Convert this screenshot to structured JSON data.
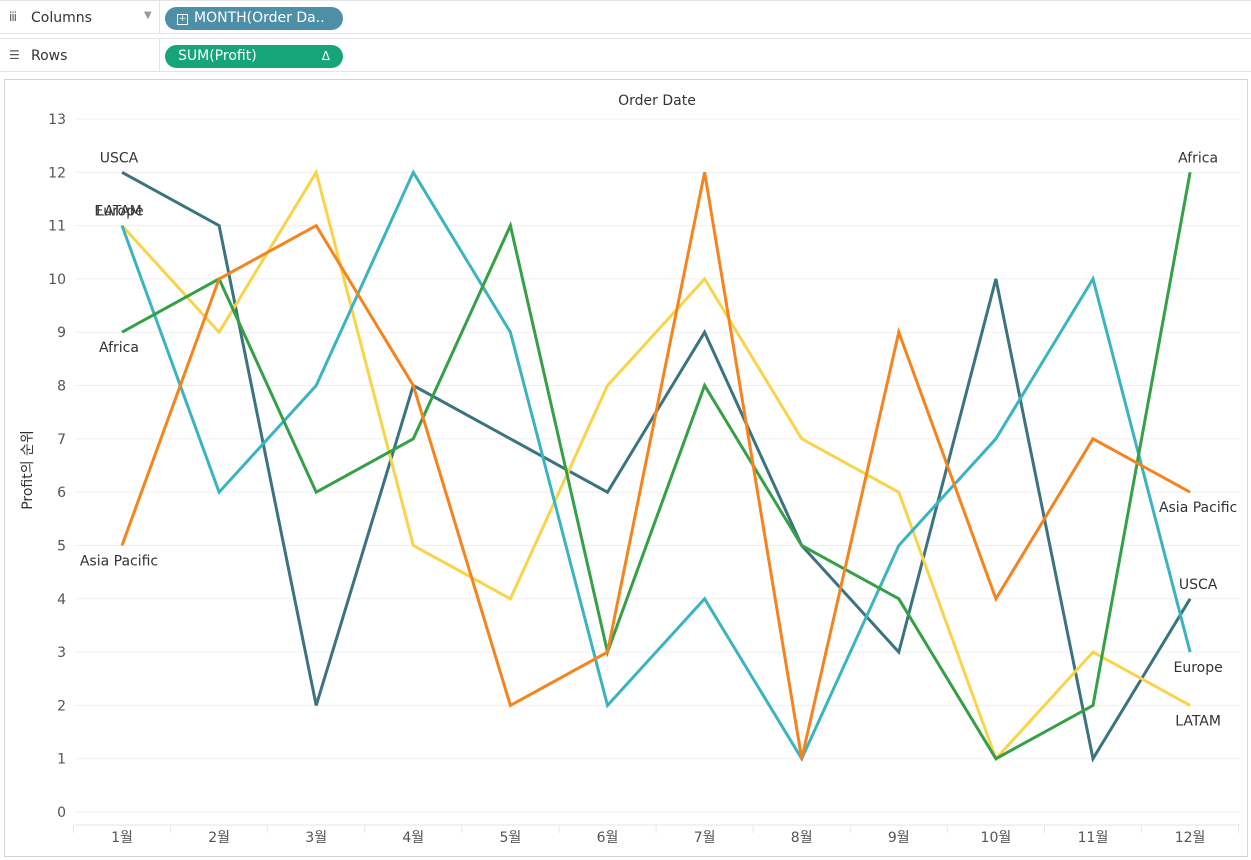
{
  "shelves": {
    "columns": {
      "label": "Columns",
      "icon": "iii",
      "pill": "MONTH(Order Da.."
    },
    "rows": {
      "label": "Rows",
      "icon": "☰",
      "pill": "SUM(Profit)",
      "pill_marker": "Δ"
    }
  },
  "chart_data": {
    "type": "line",
    "title": "Order Date",
    "xlabel": "",
    "ylabel": "Profit의 순위",
    "categories": [
      "1월",
      "2월",
      "3월",
      "4월",
      "5월",
      "6월",
      "7월",
      "8월",
      "9월",
      "10월",
      "11월",
      "12월"
    ],
    "ylim": [
      0,
      13
    ],
    "yticks": [
      0,
      1,
      2,
      3,
      4,
      5,
      6,
      7,
      8,
      9,
      10,
      11,
      12,
      13
    ],
    "grid": true,
    "legend": "none",
    "series": [
      {
        "name": "USCA",
        "color": "#3b7380",
        "values": [
          12,
          11,
          2,
          8,
          7,
          6,
          9,
          5,
          3,
          10,
          1,
          4
        ]
      },
      {
        "name": "LATAM",
        "color": "#f9d44b",
        "values": [
          11,
          9,
          12,
          5,
          4,
          8,
          10,
          7,
          6,
          1,
          3,
          2
        ]
      },
      {
        "name": "Europe",
        "color": "#3bb4c1",
        "values": [
          11,
          6,
          8,
          12,
          9,
          2,
          4,
          1,
          5,
          7,
          10,
          3
        ]
      },
      {
        "name": "Africa",
        "color": "#35a046",
        "values": [
          9,
          10,
          6,
          7,
          11,
          3,
          8,
          5,
          4,
          1,
          2,
          12
        ]
      },
      {
        "name": "Asia Pacific",
        "color": "#f5841f",
        "values": [
          5,
          10,
          11,
          8,
          2,
          3,
          12,
          1,
          9,
          4,
          7,
          6
        ]
      }
    ]
  }
}
